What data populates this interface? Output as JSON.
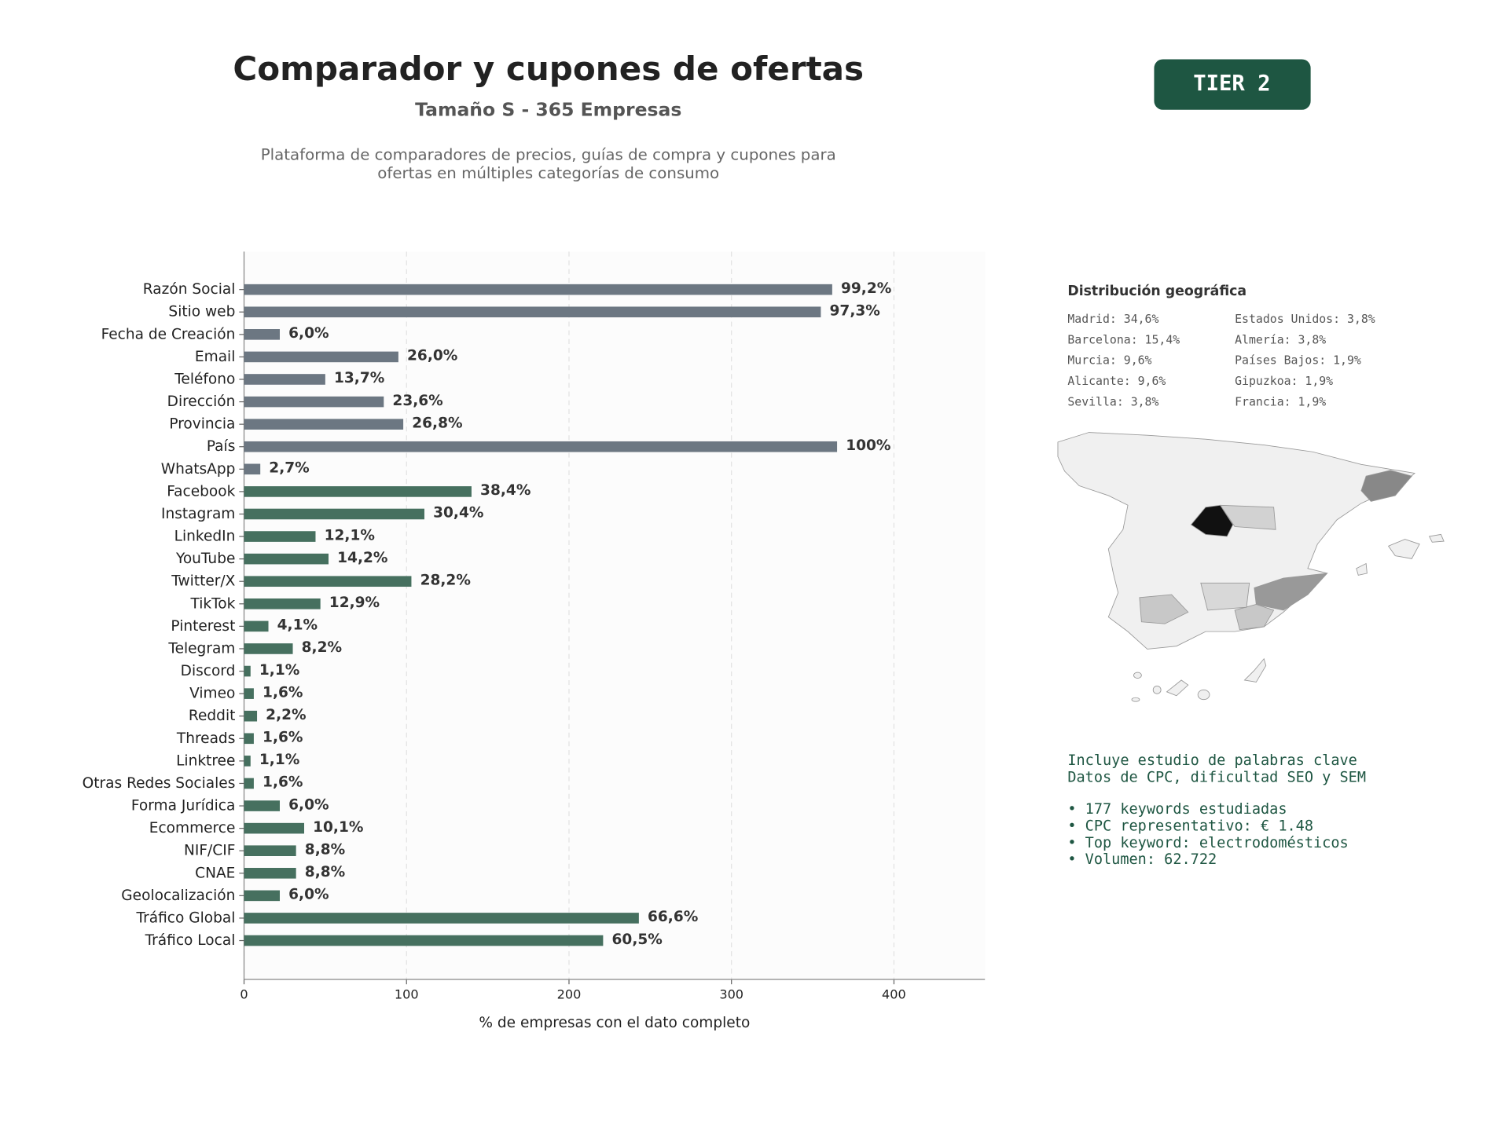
{
  "header": {
    "title": "Comparador y cupones de ofertas",
    "subtitle": "Tamaño S - 365 Empresas",
    "description": [
      "Plataforma de comparadores de precios, guías de compra y cupones para",
      "ofertas en múltiples categorías de consumo"
    ],
    "badge": "TIER 2"
  },
  "chart_data": {
    "type": "barh",
    "categories": [
      "Razón Social",
      "Sitio web",
      "Fecha de Creación",
      "Email",
      "Teléfono",
      "Dirección",
      "Provincia",
      "País",
      "WhatsApp",
      "Facebook",
      "Instagram",
      "LinkedIn",
      "YouTube",
      "Twitter/X",
      "TikTok",
      "Pinterest",
      "Telegram",
      "Discord",
      "Vimeo",
      "Reddit",
      "Threads",
      "Linktree",
      "Otras Redes Sociales",
      "Forma Jurídica",
      "Ecommerce",
      "NIF/CIF",
      "CNAE",
      "Geolocalización",
      "Tráfico Global",
      "Tráfico Local"
    ],
    "values": [
      362,
      355,
      22,
      95,
      50,
      86,
      98,
      365,
      10,
      140,
      111,
      44,
      52,
      103,
      47,
      15,
      30,
      4,
      6,
      8,
      6,
      4,
      6,
      22,
      37,
      32,
      32,
      22,
      243,
      221
    ],
    "value_labels": [
      "99,2%",
      "97,3%",
      "6,0%",
      "26,0%",
      "13,7%",
      "23,6%",
      "26,8%",
      "100%",
      "2,7%",
      "38,4%",
      "30,4%",
      "12,1%",
      "14,2%",
      "28,2%",
      "12,9%",
      "4,1%",
      "8,2%",
      "1,1%",
      "1,6%",
      "2,2%",
      "1,6%",
      "1,1%",
      "1,6%",
      "6,0%",
      "10,1%",
      "8,8%",
      "8,8%",
      "6,0%",
      "66,6%",
      "60,5%"
    ],
    "colors": [
      "#6c7782",
      "#6c7782",
      "#6c7782",
      "#6c7782",
      "#6c7782",
      "#6c7782",
      "#6c7782",
      "#6c7782",
      "#6c7782",
      "#46705f",
      "#46705f",
      "#46705f",
      "#46705f",
      "#46705f",
      "#46705f",
      "#46705f",
      "#46705f",
      "#46705f",
      "#46705f",
      "#46705f",
      "#46705f",
      "#46705f",
      "#46705f",
      "#46705f",
      "#46705f",
      "#46705f",
      "#46705f",
      "#46705f",
      "#46705f",
      "#46705f"
    ],
    "xlabel": "% de empresas con el dato completo",
    "xlim": [
      0,
      456
    ],
    "xticks": [
      0,
      100,
      200,
      300,
      400
    ],
    "grid": true
  },
  "geo": {
    "title": "Distribución geográfica",
    "items": [
      [
        "Madrid: 34,6%",
        "Barcelona: 15,4%",
        "Murcia: 9,6%",
        "Alicante: 9,6%",
        "Sevilla: 3,8%"
      ],
      [
        "Estados Unidos: 3,8%",
        "Almería: 3,8%",
        "Países Bajos: 1,9%",
        "Gipuzkoa: 1,9%",
        "Francia: 1,9%"
      ]
    ]
  },
  "keywords": {
    "intro": [
      "Incluye estudio de palabras clave",
      "Datos de CPC, dificultad SEO y SEM"
    ],
    "bullets": [
      "• 177 keywords estudiadas",
      "• CPC representativo: € 1.48",
      "• Top keyword: electrodomésticos",
      "• Volumen: 62.722"
    ]
  }
}
